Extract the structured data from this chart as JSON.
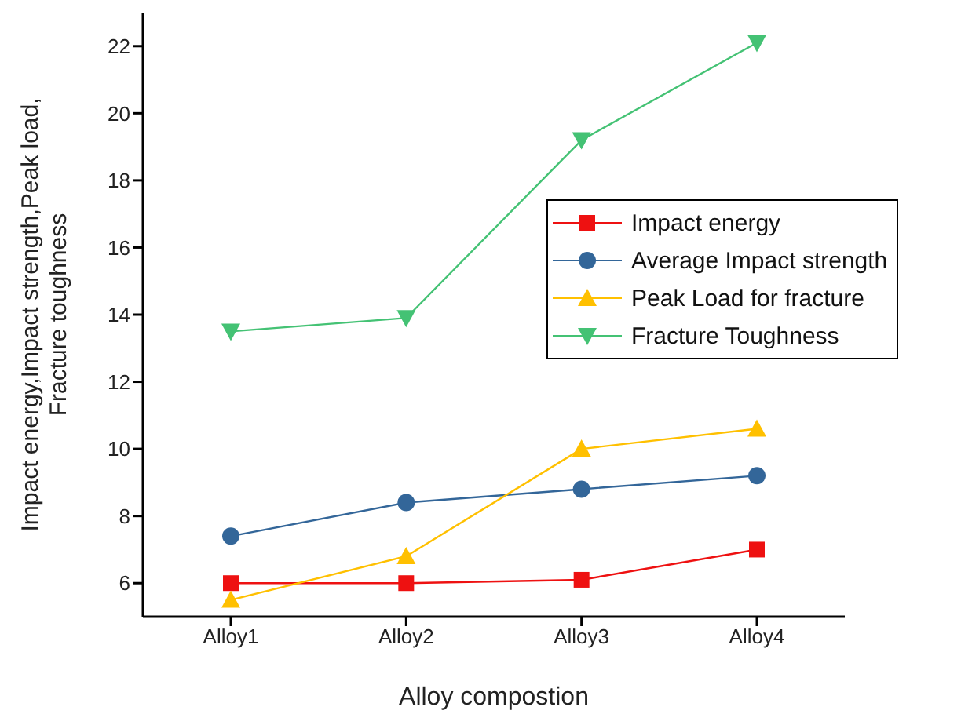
{
  "chart_data": {
    "type": "line",
    "xlabel": "Alloy compostion",
    "ylabel": "Impact energy,Impact strength,Peak load,\nFracture toughness",
    "categories": [
      "Alloy1",
      "Alloy2",
      "Alloy3",
      "Alloy4"
    ],
    "series": [
      {
        "name": "Impact energy",
        "color": "#ee1111",
        "marker": "square",
        "values": [
          6.0,
          6.0,
          6.1,
          7.0
        ]
      },
      {
        "name": "Average Impact strength",
        "color": "#336699",
        "marker": "circle",
        "values": [
          7.4,
          8.4,
          8.8,
          9.2
        ]
      },
      {
        "name": "Peak Load for fracture",
        "color": "#ffc000",
        "marker": "triangle",
        "values": [
          5.5,
          6.8,
          10.0,
          10.6
        ]
      },
      {
        "name": "Fracture Toughness",
        "color": "#44c274",
        "marker": "triangle-down",
        "values": [
          13.5,
          13.9,
          19.2,
          22.1
        ]
      }
    ],
    "ylim": [
      5,
      23
    ],
    "yticks": [
      6,
      8,
      10,
      12,
      14,
      16,
      18,
      20,
      22
    ],
    "grid": false,
    "legend": "right",
    "line_style": "solid"
  }
}
